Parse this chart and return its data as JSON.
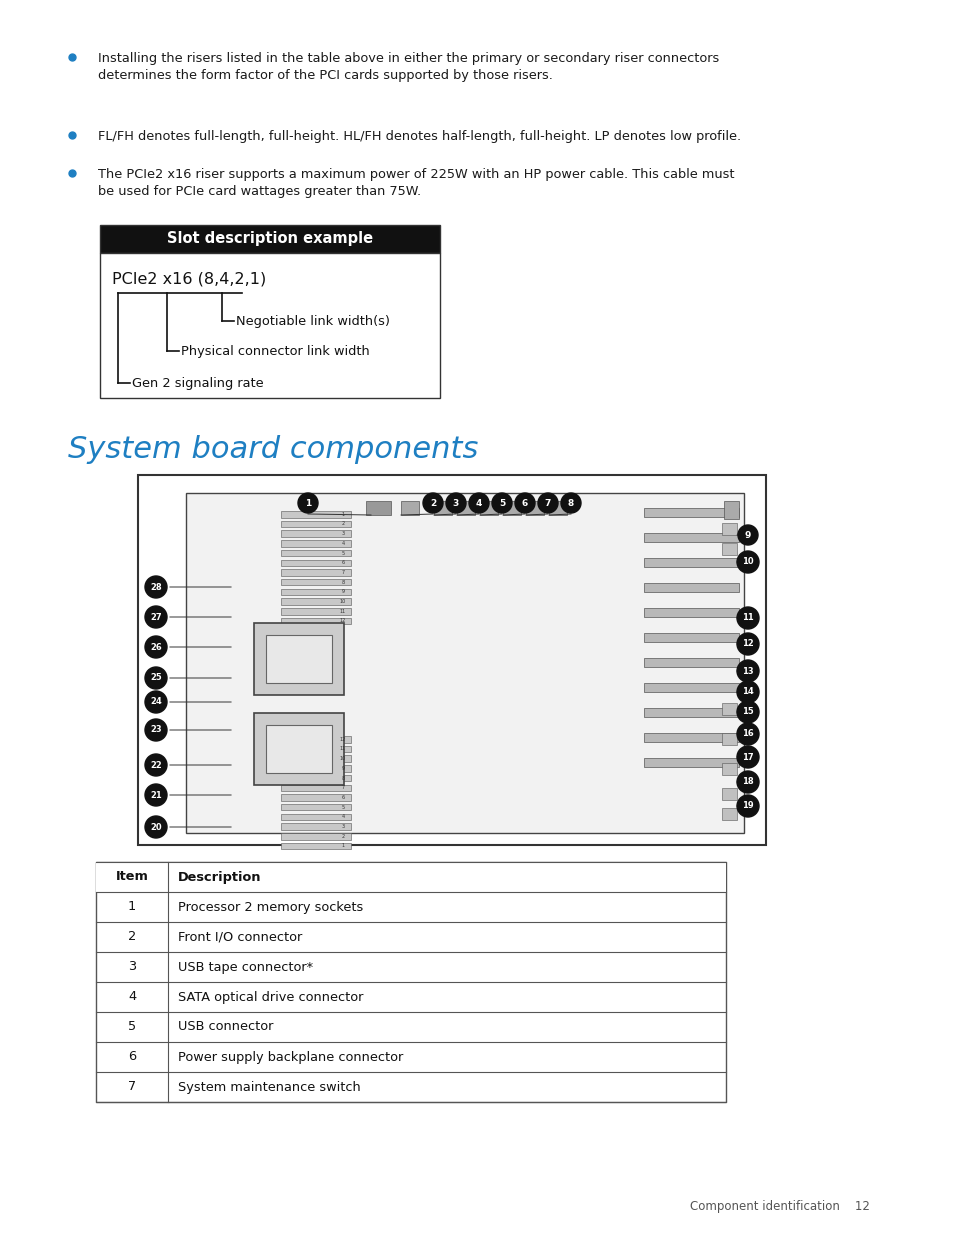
{
  "background_color": "#ffffff",
  "bullet_color": "#1e7fc2",
  "bullet_points": [
    "Installing the risers listed in the table above in either the primary or secondary riser connectors\ndetermines the form factor of the PCI cards supported by those risers.",
    "FL/FH denotes full-length, full-height. HL/FH denotes half-length, full-height. LP denotes low profile.",
    "The PCIe2 x16 riser supports a maximum power of 225W with an HP power cable. This cable must\nbe used for PCIe card wattages greater than 75W."
  ],
  "slot_box_title": "Slot description example",
  "slot_box_title_bg": "#1a1a1a",
  "slot_box_title_color": "#ffffff",
  "slot_example_text": "PCIe2 x16 (8,4,2,1)",
  "slot_labels": [
    "Negotiable link width(s)",
    "Physical connector link width",
    "Gen 2 signaling rate"
  ],
  "section_title": "System board components",
  "section_title_color": "#1e7fc2",
  "table_headers": [
    "Item",
    "Description"
  ],
  "table_rows": [
    [
      "1",
      "Processor 2 memory sockets"
    ],
    [
      "2",
      "Front I/O connector"
    ],
    [
      "3",
      "USB tape connector*"
    ],
    [
      "4",
      "SATA optical drive connector"
    ],
    [
      "5",
      "USB connector"
    ],
    [
      "6",
      "Power supply backplane connector"
    ],
    [
      "7",
      "System maintenance switch"
    ]
  ],
  "footer_text": "Component identification    12"
}
